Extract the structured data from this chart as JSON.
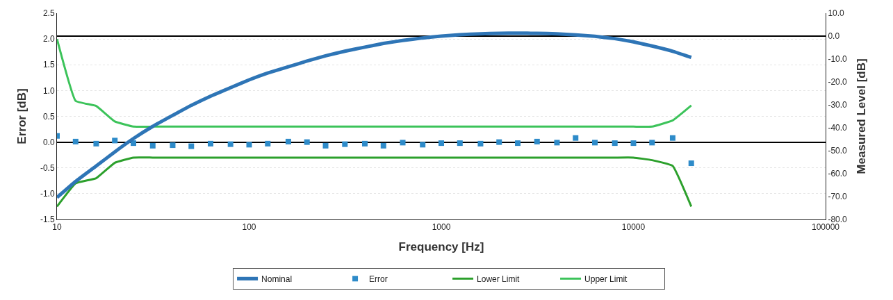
{
  "chart_data": {
    "type": "line",
    "xlabel": "Frequency [Hz]",
    "ylabel": "Error [dB]",
    "y2label": "Measured Level [dB]",
    "x": [
      10,
      12.5,
      16,
      20,
      25,
      31.5,
      40,
      50,
      63,
      80,
      100,
      125,
      160,
      200,
      250,
      315,
      400,
      500,
      630,
      800,
      1000,
      1250,
      1600,
      2000,
      2500,
      3150,
      4000,
      5000,
      6300,
      8000,
      10000,
      12500,
      16000,
      20000
    ],
    "series": [
      {
        "name": "Nominal",
        "axis": "y2",
        "color": "#2e75b6",
        "marker": "none",
        "values": [
          -70.4,
          -63.4,
          -56.7,
          -50.5,
          -44.7,
          -39.4,
          -34.6,
          -30.2,
          -26.2,
          -22.5,
          -19.1,
          -16.1,
          -13.4,
          -10.9,
          -8.6,
          -6.6,
          -4.8,
          -3.2,
          -1.9,
          -0.8,
          0.0,
          0.6,
          1.0,
          1.2,
          1.3,
          1.2,
          1.0,
          0.5,
          -0.1,
          -1.1,
          -2.5,
          -4.3,
          -6.6,
          -9.3
        ]
      },
      {
        "name": "Error",
        "type": "scatter",
        "color": "#2e8bc9",
        "marker": "square",
        "values": [
          0.12,
          0.01,
          -0.03,
          0.03,
          -0.02,
          -0.07,
          -0.06,
          -0.08,
          -0.03,
          -0.04,
          -0.05,
          -0.03,
          0.01,
          0.0,
          -0.07,
          -0.04,
          -0.03,
          -0.07,
          -0.01,
          -0.05,
          -0.02,
          -0.02,
          -0.03,
          0.0,
          -0.02,
          0.01,
          -0.01,
          0.08,
          -0.01,
          -0.02,
          -0.02,
          -0.01,
          0.08,
          -0.41
        ]
      },
      {
        "name": "Lower Limit",
        "color": "#2ca02c",
        "marker": "none",
        "values": [
          -1.25,
          -0.8,
          -0.7,
          -0.4,
          -0.3,
          -0.3,
          -0.3,
          -0.3,
          -0.3,
          -0.3,
          -0.3,
          -0.3,
          -0.3,
          -0.3,
          -0.3,
          -0.3,
          -0.3,
          -0.3,
          -0.3,
          -0.3,
          -0.3,
          -0.3,
          -0.3,
          -0.3,
          -0.3,
          -0.3,
          -0.3,
          -0.3,
          -0.3,
          -0.3,
          -0.3,
          -0.35,
          -0.46,
          -1.25
        ]
      },
      {
        "name": "Upper Limit",
        "color": "#3cc35a",
        "marker": "none",
        "values": [
          2.0,
          0.8,
          0.7,
          0.4,
          0.3,
          0.3,
          0.3,
          0.3,
          0.3,
          0.3,
          0.3,
          0.3,
          0.3,
          0.3,
          0.3,
          0.3,
          0.3,
          0.3,
          0.3,
          0.3,
          0.3,
          0.3,
          0.3,
          0.3,
          0.3,
          0.3,
          0.3,
          0.3,
          0.3,
          0.3,
          0.3,
          0.3,
          0.42,
          0.71
        ]
      }
    ],
    "log": "x",
    "xlim": [
      10,
      100000
    ],
    "xticks": [
      10,
      100,
      1000,
      10000,
      100000
    ],
    "ylim": [
      -1.5,
      2.5
    ],
    "yticks": [
      -1.5,
      {
        "value": -1,
        "label": "-1.0"
      },
      -0.5,
      {
        "value": 0,
        "label": "0.0"
      },
      0.5,
      {
        "value": 1,
        "label": "1.0"
      },
      1.5,
      {
        "value": 2,
        "label": "2.0"
      },
      2.5
    ],
    "y2lim": [
      -80,
      10
    ],
    "y2ticks": [
      {
        "value": -80,
        "label": "-80.0"
      },
      {
        "value": -70,
        "label": "-70.0"
      },
      {
        "value": -60,
        "label": "-60.0"
      },
      {
        "value": -50,
        "label": "-50.0"
      },
      {
        "value": -40,
        "label": "-40.0"
      },
      {
        "value": -30,
        "label": "-30.0"
      },
      {
        "value": -20,
        "label": "-20.0"
      },
      {
        "value": -10,
        "label": "-10.0"
      },
      {
        "value": 0,
        "label": "0.0"
      },
      {
        "value": 10,
        "label": "10.0"
      }
    ],
    "grid": "y",
    "legend": "bottom"
  }
}
